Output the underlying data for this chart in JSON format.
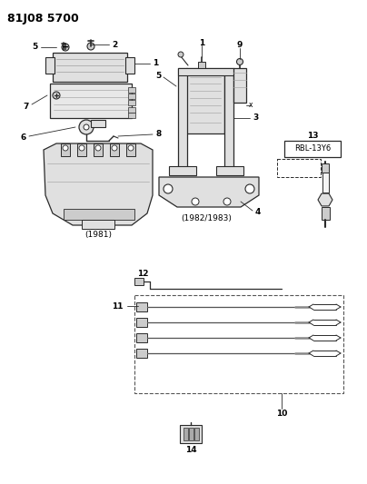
{
  "title": "81J08 5700",
  "bg": "#ffffff",
  "lc": "#2a2a2a",
  "gray1": "#cccccc",
  "gray2": "#e0e0e0",
  "gray3": "#aaaaaa",
  "fig_w": 4.04,
  "fig_h": 5.33,
  "dpi": 100,
  "label_1981": "(1981)",
  "label_1982": "(1982/1983)",
  "part13_label": "RBL-13Y6"
}
